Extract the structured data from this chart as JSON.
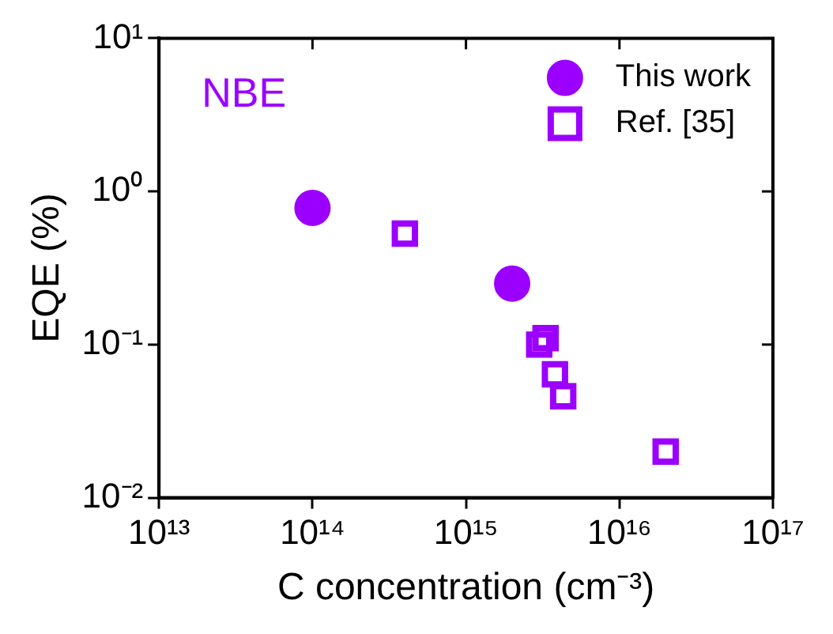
{
  "chart_data": {
    "type": "scatter",
    "xlabel": "C concentration (cm⁻³)",
    "ylabel": "EQE (%)",
    "log": "xy",
    "annotations": [
      "NBE"
    ],
    "xlim": [
      10000000000000.0,
      1e+17
    ],
    "xticks": [
      {
        "value": 10000000000000.0,
        "label": "10¹³"
      },
      {
        "value": 100000000000000.0,
        "label": "10¹⁴"
      },
      {
        "value": 1000000000000000.0,
        "label": "10¹⁵"
      },
      {
        "value": 1e+16,
        "label": "10¹⁶"
      },
      {
        "value": 1e+17,
        "label": "10¹⁷"
      }
    ],
    "ylim": [
      0.01,
      10
    ],
    "yticks": [
      {
        "value": 0.01,
        "label": "10⁻²"
      },
      {
        "value": 0.1,
        "label": "10⁻¹"
      },
      {
        "value": 1,
        "label": "10⁰"
      },
      {
        "value": 10,
        "label": "10¹"
      }
    ],
    "grid": false,
    "legend": "top right",
    "series": [
      {
        "name": "This work",
        "color": "#9b00ff",
        "marker": "circle",
        "x": [
          100000000000000.0,
          2000000000000000.0
        ],
        "values": [
          0.78,
          0.25
        ]
      },
      {
        "name": "Ref. [35]",
        "color": "#9b00ff",
        "marker": "square",
        "x": [
          400000000000000.0,
          3000000000000000.0,
          3300000000000000.0,
          3800000000000000.0,
          4300000000000000.0,
          2e+16
        ],
        "values": [
          0.53,
          0.1,
          0.11,
          0.064,
          0.046,
          0.02
        ]
      }
    ]
  }
}
